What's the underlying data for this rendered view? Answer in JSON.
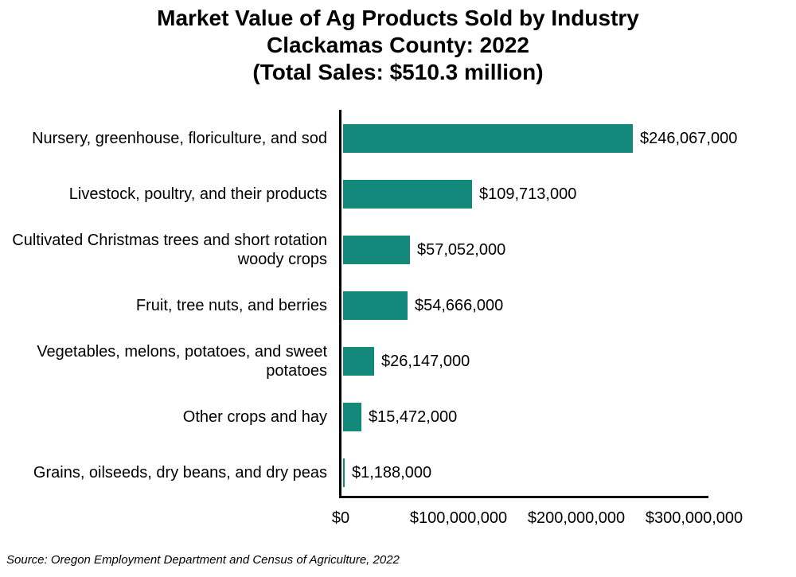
{
  "title": {
    "lines": [
      "Market Value of Ag Products Sold by Industry",
      "Clackamas County: 2022",
      "(Total Sales: $510.3 million)"
    ]
  },
  "chart_data": {
    "type": "bar",
    "orientation": "horizontal",
    "title": "Market Value of Ag Products Sold by Industry Clackamas County: 2022 (Total Sales: $510.3 million)",
    "total_sales_label": "$510.3 million",
    "categories": [
      "Nursery, greenhouse, floriculture, and sod",
      "Livestock, poultry, and their products",
      "Cultivated Christmas trees and short rotation woody crops",
      "Fruit, tree nuts, and berries",
      "Vegetables, melons, potatoes, and sweet potatoes",
      "Other crops and hay",
      "Grains, oilseeds, dry beans, and dry peas"
    ],
    "values": [
      246067000,
      109713000,
      57052000,
      54666000,
      26147000,
      15472000,
      1188000
    ],
    "value_labels": [
      "$246,067,000",
      "$109,713,000",
      "$57,052,000",
      "$54,666,000",
      "$26,147,000",
      "$15,472,000",
      "$1,188,000"
    ],
    "xlabel_ticks": [
      "$0",
      "$100,000,000",
      "$200,000,000",
      "$300,000,000"
    ],
    "xlim": [
      0,
      313000000
    ],
    "grid": "off",
    "legend": "none",
    "bar_color": "#12897B",
    "axis_color": "#000000"
  },
  "source_note": "Source: Oregon Employment Department and Census of Agriculture, 2022"
}
